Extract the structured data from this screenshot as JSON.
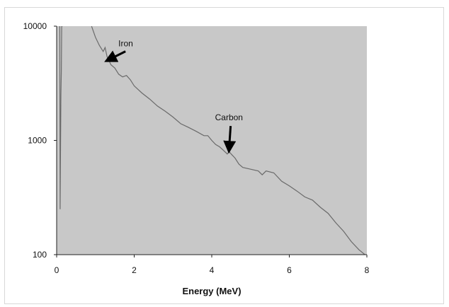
{
  "chart_data": {
    "type": "line",
    "title": "",
    "xlabel": "Energy (MeV)",
    "ylabel": "",
    "xlim": [
      0,
      8
    ],
    "ylim": [
      100,
      10000
    ],
    "yscale": "log",
    "grid": false,
    "legend": "none",
    "plot_background": "#c8c8c8",
    "line_color": "#6a6a6a",
    "x_ticks": [
      0,
      2,
      4,
      6,
      8
    ],
    "x_tick_labels": [
      "0",
      "2",
      "4",
      "6",
      "8"
    ],
    "y_ticks": [
      100,
      1000,
      10000
    ],
    "y_tick_labels": [
      "100",
      "1000",
      "10000"
    ],
    "spike": {
      "x": [
        0.08,
        0.09,
        0.1,
        0.11,
        0.12,
        0.13,
        0.15
      ],
      "y": [
        10000,
        250,
        900,
        2500,
        4000,
        10000,
        10000
      ]
    },
    "series": [
      {
        "x": [
          0.9,
          1.0,
          1.1,
          1.2,
          1.25,
          1.3,
          1.35,
          1.4,
          1.5,
          1.6,
          1.7,
          1.8,
          1.9,
          2.0,
          2.2,
          2.4,
          2.6,
          2.8,
          3.0,
          3.2,
          3.4,
          3.6,
          3.8,
          3.9,
          4.0,
          4.1,
          4.2,
          4.3,
          4.4,
          4.45,
          4.5,
          4.6,
          4.7,
          4.8,
          5.0,
          5.2,
          5.3,
          5.4,
          5.6,
          5.8,
          6.0,
          6.2,
          6.4,
          6.6,
          6.8,
          7.0,
          7.2,
          7.4,
          7.6,
          7.8,
          7.95
        ],
        "y": [
          10000,
          8000,
          6800,
          6000,
          6500,
          5400,
          5000,
          4600,
          4300,
          3800,
          3600,
          3700,
          3400,
          3000,
          2600,
          2300,
          2000,
          1800,
          1600,
          1400,
          1300,
          1200,
          1100,
          1100,
          1000,
          920,
          880,
          820,
          760,
          800,
          760,
          700,
          620,
          580,
          560,
          540,
          500,
          540,
          520,
          440,
          400,
          360,
          320,
          300,
          260,
          230,
          190,
          160,
          130,
          110,
          100
        ]
      }
    ],
    "annotations": [
      {
        "text": "Iron",
        "x": 1.3,
        "y": 5000
      },
      {
        "text": "Carbon",
        "x": 4.45,
        "y": 800
      }
    ]
  }
}
